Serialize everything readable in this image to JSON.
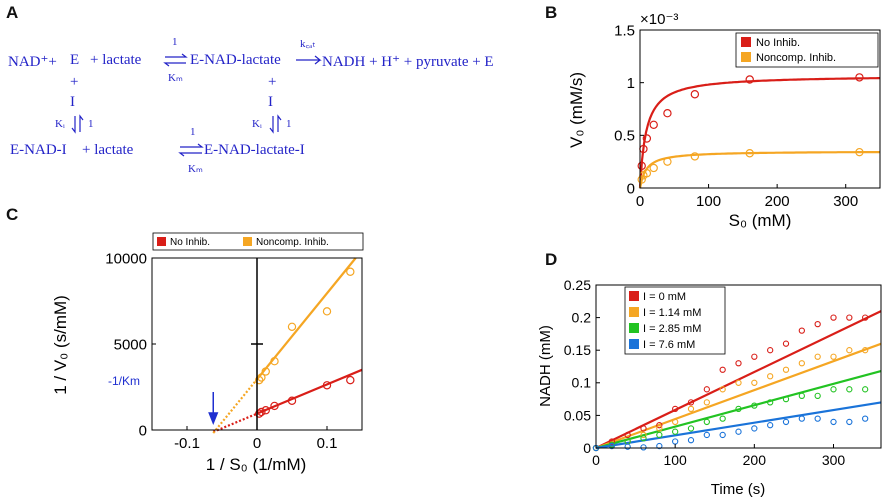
{
  "panels": {
    "A": "A",
    "B": "B",
    "C": "C",
    "D": "D"
  },
  "scheme": {
    "nad": "NAD⁺+",
    "e": "E",
    "plus_lactate": "+ lactate",
    "eq_one": "1",
    "km": "Kₘ",
    "e_nad_lactate": "E-NAD-lactate",
    "kcat": "k꜀ₐₜ",
    "products": "NADH + H⁺ + pyruvate + E",
    "plus": "+",
    "i": "I",
    "ki": "Kᵢ",
    "one": "1",
    "e_nad_i": "E-NAD-I",
    "lactate": "+ lactate",
    "e_nad_lactate_i": "E-NAD-lactate-I"
  },
  "chart_data": [
    {
      "id": "B",
      "type": "scatter+line",
      "xlabel": "S₀ (mM)",
      "ylabel": "V₀ (mM/s)",
      "exponent_label": "×10⁻³",
      "xlim": [
        0,
        350
      ],
      "ylim": [
        0,
        0.0015
      ],
      "xticks": [
        0,
        100,
        200,
        300
      ],
      "xtick_labels": [
        "0",
        "100",
        "200",
        "300"
      ],
      "yticks": [
        0,
        0.0005,
        0.001,
        0.0015
      ],
      "ytick_labels": [
        "0",
        "0.5",
        "1",
        "1.5"
      ],
      "legend": [
        "No Inhib.",
        "Noncomp. Inhib."
      ],
      "series": [
        {
          "name": "No Inhib.",
          "color": "#d91e18",
          "vmax": 0.00107,
          "km": 9.0,
          "points": [
            [
              2.5,
              0.00021
            ],
            [
              5,
              0.00037
            ],
            [
              10,
              0.00047
            ],
            [
              20,
              0.0006
            ],
            [
              40,
              0.00071
            ],
            [
              80,
              0.00089
            ],
            [
              160,
              0.00103
            ],
            [
              320,
              0.00105
            ]
          ]
        },
        {
          "name": "Noncomp. Inhib.",
          "color": "#f5a623",
          "vmax": 0.00035,
          "km": 9.0,
          "points": [
            [
              2.5,
              8e-05
            ],
            [
              5,
              0.00012
            ],
            [
              10,
              0.00014
            ],
            [
              20,
              0.00019
            ],
            [
              40,
              0.00025
            ],
            [
              80,
              0.0003
            ],
            [
              160,
              0.00033
            ],
            [
              320,
              0.00034
            ]
          ]
        }
      ]
    },
    {
      "id": "C",
      "type": "scatter+line",
      "xlabel": "1 / S₀ (1/mM)",
      "ylabel": "1 / V₀ (s/mM)",
      "xlim": [
        -0.15,
        0.15
      ],
      "ylim": [
        0,
        10000
      ],
      "xticks": [
        -0.1,
        0,
        0.1
      ],
      "xtick_labels": [
        "-0.1",
        "0",
        "0.1"
      ],
      "yticks": [
        0,
        5000,
        10000
      ],
      "ytick_labels": [
        "0",
        "5000",
        "10000"
      ],
      "legend": [
        "No Inhib.",
        "Noncomp. Inhib."
      ],
      "annotation": "-1/Km",
      "x_intercept": -0.0625,
      "series": [
        {
          "name": "No Inhib.",
          "color": "#d91e18",
          "slope": 17000,
          "intercept": 950,
          "points": [
            [
              0.0031,
              950
            ],
            [
              0.0063,
              1050
            ],
            [
              0.0125,
              1150
            ],
            [
              0.025,
              1400
            ],
            [
              0.05,
              1700
            ],
            [
              0.1,
              2600
            ],
            [
              0.1333,
              2900
            ]
          ]
        },
        {
          "name": "Noncomp. Inhib.",
          "color": "#f5a623",
          "slope": 50000,
          "intercept": 2950,
          "points": [
            [
              0.0031,
              2900
            ],
            [
              0.0063,
              3050
            ],
            [
              0.0125,
              3400
            ],
            [
              0.025,
              4000
            ],
            [
              0.05,
              6000
            ],
            [
              0.1,
              6900
            ],
            [
              0.1333,
              9200
            ]
          ]
        }
      ]
    },
    {
      "id": "D",
      "type": "scatter+line",
      "xlabel": "Time (s)",
      "ylabel": "NADH (mM)",
      "xlim": [
        0,
        360
      ],
      "ylim": [
        0,
        0.25
      ],
      "xticks": [
        0,
        100,
        200,
        300
      ],
      "xtick_labels": [
        "0",
        "100",
        "200",
        "300"
      ],
      "yticks": [
        0,
        0.05,
        0.1,
        0.15,
        0.2,
        0.25
      ],
      "ytick_labels": [
        "0",
        "0.05",
        "0.1",
        "0.15",
        "0.2",
        "0.25"
      ],
      "legend": [
        "I = 0 mM",
        "I = 1.14 mM",
        "I = 2.85 mM",
        "I = 7.6 mM"
      ],
      "series": [
        {
          "name": "I = 0 mM",
          "color": "#d91e18",
          "slope": 0.000583,
          "points": [
            [
              0,
              0
            ],
            [
              20,
              0.01
            ],
            [
              40,
              0.02
            ],
            [
              60,
              0.03
            ],
            [
              80,
              0.035
            ],
            [
              100,
              0.06
            ],
            [
              120,
              0.07
            ],
            [
              140,
              0.09
            ],
            [
              160,
              0.12
            ],
            [
              180,
              0.13
            ],
            [
              200,
              0.14
            ],
            [
              220,
              0.15
            ],
            [
              240,
              0.16
            ],
            [
              260,
              0.18
            ],
            [
              280,
              0.19
            ],
            [
              300,
              0.2
            ],
            [
              320,
              0.2
            ],
            [
              340,
              0.2
            ]
          ]
        },
        {
          "name": "I = 1.14 mM",
          "color": "#f5a623",
          "slope": 0.000444,
          "points": [
            [
              0,
              0
            ],
            [
              20,
              0.005
            ],
            [
              40,
              0.01
            ],
            [
              60,
              0.02
            ],
            [
              80,
              0.03
            ],
            [
              100,
              0.04
            ],
            [
              120,
              0.06
            ],
            [
              140,
              0.07
            ],
            [
              160,
              0.09
            ],
            [
              180,
              0.1
            ],
            [
              200,
              0.1
            ],
            [
              220,
              0.11
            ],
            [
              240,
              0.12
            ],
            [
              260,
              0.13
            ],
            [
              280,
              0.14
            ],
            [
              300,
              0.14
            ],
            [
              320,
              0.15
            ],
            [
              340,
              0.15
            ]
          ]
        },
        {
          "name": "I = 2.85 mM",
          "color": "#22c322",
          "slope": 0.000328,
          "points": [
            [
              0,
              0
            ],
            [
              20,
              0.005
            ],
            [
              40,
              0.01
            ],
            [
              60,
              0.015
            ],
            [
              80,
              0.02
            ],
            [
              100,
              0.025
            ],
            [
              120,
              0.03
            ],
            [
              140,
              0.04
            ],
            [
              160,
              0.045
            ],
            [
              180,
              0.06
            ],
            [
              200,
              0.065
            ],
            [
              220,
              0.07
            ],
            [
              240,
              0.075
            ],
            [
              260,
              0.08
            ],
            [
              280,
              0.08
            ],
            [
              300,
              0.09
            ],
            [
              320,
              0.09
            ],
            [
              340,
              0.09
            ]
          ]
        },
        {
          "name": "I = 7.6 mM",
          "color": "#1a73d9",
          "slope": 0.000194,
          "points": [
            [
              0,
              0
            ],
            [
              20,
              0.003
            ],
            [
              40,
              0.002
            ],
            [
              60,
              0.001
            ],
            [
              80,
              0.003
            ],
            [
              100,
              0.01
            ],
            [
              120,
              0.012
            ],
            [
              140,
              0.02
            ],
            [
              160,
              0.02
            ],
            [
              180,
              0.025
            ],
            [
              200,
              0.03
            ],
            [
              220,
              0.035
            ],
            [
              240,
              0.04
            ],
            [
              260,
              0.045
            ],
            [
              280,
              0.045
            ],
            [
              300,
              0.04
            ],
            [
              320,
              0.04
            ],
            [
              340,
              0.045
            ]
          ]
        }
      ]
    }
  ]
}
